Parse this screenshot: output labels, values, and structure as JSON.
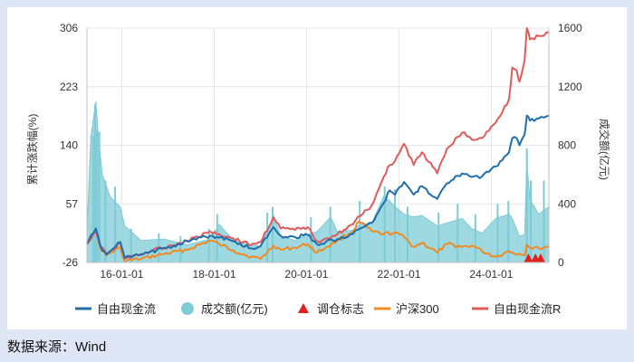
{
  "source_note": "数据来源：Wind",
  "colors": {
    "free_cash_flow": "#1f6fad",
    "volume": "#7ecbd6",
    "rebalance": "#e11f1f",
    "hs300": "#f08a24",
    "free_cash_flow_r": "#e05a5a",
    "grid": "#e6e6e6"
  },
  "chart_data": {
    "type": "line",
    "title": "",
    "xlabel": "",
    "ylabel": "累计涨跌幅(%)",
    "y2label": "成交额(亿元)",
    "ylim": [
      -26,
      306
    ],
    "y2lim": [
      0,
      1600
    ],
    "y_ticks": [
      "306",
      "223",
      "140",
      "57",
      "-26"
    ],
    "y2_ticks": [
      "1600",
      "1200",
      "800",
      "400",
      "0"
    ],
    "x_range": [
      "2015-04-01",
      "2025-03-31"
    ],
    "x_ticks": [
      {
        "date": "2016-01-01",
        "label": "16-01-01"
      },
      {
        "date": "2018-01-01",
        "label": "18-01-01"
      },
      {
        "date": "2020-01-01",
        "label": "20-01-01"
      },
      {
        "date": "2022-01-01",
        "label": "22-01-01"
      },
      {
        "date": "2024-01-01",
        "label": "24-01-01"
      }
    ],
    "legend": [
      {
        "key": "free_cash_flow",
        "label": "自由现金流",
        "shape": "line"
      },
      {
        "key": "volume",
        "label": "成交额(亿元)",
        "shape": "dot"
      },
      {
        "key": "rebalance",
        "label": "调仓标志",
        "shape": "triangle"
      },
      {
        "key": "hs300",
        "label": "沪深300",
        "shape": "line"
      },
      {
        "key": "free_cash_flow_r",
        "label": "自由现金流R",
        "shape": "line"
      }
    ],
    "series": [
      {
        "key": "free_cash_flow_r",
        "name": "自由现金流R",
        "axis": "left",
        "kind": "line",
        "points": [
          [
            "2015-04-01",
            0
          ],
          [
            "2015-06-10",
            18
          ],
          [
            "2015-07-15",
            -3
          ],
          [
            "2015-09-01",
            -14
          ],
          [
            "2015-12-20",
            2
          ],
          [
            "2016-01-25",
            -20
          ],
          [
            "2016-06-01",
            -14
          ],
          [
            "2016-12-01",
            -5
          ],
          [
            "2017-06-01",
            5
          ],
          [
            "2017-12-01",
            18
          ],
          [
            "2018-02-10",
            14
          ],
          [
            "2018-06-01",
            8
          ],
          [
            "2018-10-20",
            -1
          ],
          [
            "2019-01-03",
            3
          ],
          [
            "2019-04-15",
            38
          ],
          [
            "2019-06-10",
            22
          ],
          [
            "2019-10-01",
            20
          ],
          [
            "2020-01-10",
            24
          ],
          [
            "2020-03-23",
            4
          ],
          [
            "2020-06-01",
            8
          ],
          [
            "2020-09-01",
            14
          ],
          [
            "2021-01-01",
            28
          ],
          [
            "2021-03-01",
            40
          ],
          [
            "2021-06-01",
            55
          ],
          [
            "2021-09-01",
            95
          ],
          [
            "2021-10-20",
            112
          ],
          [
            "2021-12-01",
            118
          ],
          [
            "2022-02-10",
            142
          ],
          [
            "2022-04-27",
            112
          ],
          [
            "2022-07-01",
            130
          ],
          [
            "2022-10-31",
            100
          ],
          [
            "2023-01-15",
            135
          ],
          [
            "2023-05-15",
            158
          ],
          [
            "2023-08-01",
            148
          ],
          [
            "2023-10-20",
            150
          ],
          [
            "2024-02-05",
            172
          ],
          [
            "2024-05-20",
            205
          ],
          [
            "2024-06-15",
            250
          ],
          [
            "2024-07-20",
            246
          ],
          [
            "2024-08-10",
            230
          ],
          [
            "2024-09-20",
            260
          ],
          [
            "2024-10-08",
            306
          ],
          [
            "2024-11-01",
            290
          ],
          [
            "2025-01-10",
            295
          ],
          [
            "2025-03-31",
            300
          ]
        ]
      },
      {
        "key": "free_cash_flow",
        "name": "自由现金流",
        "axis": "left",
        "kind": "line",
        "points": [
          [
            "2015-04-01",
            0
          ],
          [
            "2015-06-10",
            22
          ],
          [
            "2015-07-15",
            -2
          ],
          [
            "2015-09-01",
            -15
          ],
          [
            "2015-12-20",
            3
          ],
          [
            "2016-01-25",
            -20
          ],
          [
            "2016-06-01",
            -15
          ],
          [
            "2016-12-01",
            -6
          ],
          [
            "2017-06-01",
            4
          ],
          [
            "2017-12-01",
            12
          ],
          [
            "2018-02-10",
            9
          ],
          [
            "2018-06-01",
            4
          ],
          [
            "2018-10-20",
            -6
          ],
          [
            "2019-01-03",
            -3
          ],
          [
            "2019-04-15",
            24
          ],
          [
            "2019-06-10",
            12
          ],
          [
            "2019-10-01",
            10
          ],
          [
            "2020-01-10",
            13
          ],
          [
            "2020-03-23",
            0
          ],
          [
            "2020-06-01",
            3
          ],
          [
            "2020-09-01",
            7
          ],
          [
            "2021-01-01",
            14
          ],
          [
            "2021-03-01",
            22
          ],
          [
            "2021-06-01",
            30
          ],
          [
            "2021-09-01",
            58
          ],
          [
            "2021-10-20",
            76
          ],
          [
            "2021-12-01",
            70
          ],
          [
            "2022-02-10",
            88
          ],
          [
            "2022-04-27",
            70
          ],
          [
            "2022-07-01",
            82
          ],
          [
            "2022-10-31",
            64
          ],
          [
            "2023-01-15",
            86
          ],
          [
            "2023-05-15",
            100
          ],
          [
            "2023-08-01",
            95
          ],
          [
            "2023-10-20",
            96
          ],
          [
            "2024-02-05",
            110
          ],
          [
            "2024-05-20",
            130
          ],
          [
            "2024-06-15",
            150
          ],
          [
            "2024-07-20",
            150
          ],
          [
            "2024-08-10",
            140
          ],
          [
            "2024-09-20",
            155
          ],
          [
            "2024-10-08",
            182
          ],
          [
            "2024-11-01",
            175
          ],
          [
            "2025-01-10",
            178
          ],
          [
            "2025-03-31",
            182
          ]
        ]
      },
      {
        "key": "hs300",
        "name": "沪深300",
        "axis": "left",
        "kind": "line",
        "points": [
          [
            "2015-04-01",
            0
          ],
          [
            "2015-06-10",
            20
          ],
          [
            "2015-07-15",
            -5
          ],
          [
            "2015-09-01",
            -16
          ],
          [
            "2015-12-20",
            -5
          ],
          [
            "2016-01-25",
            -24
          ],
          [
            "2016-06-01",
            -21
          ],
          [
            "2016-12-01",
            -14
          ],
          [
            "2017-06-01",
            -8
          ],
          [
            "2017-12-01",
            5
          ],
          [
            "2018-02-10",
            0
          ],
          [
            "2018-06-01",
            -9
          ],
          [
            "2018-10-20",
            -18
          ],
          [
            "2019-01-03",
            -21
          ],
          [
            "2019-04-15",
            -2
          ],
          [
            "2019-06-10",
            -8
          ],
          [
            "2019-10-01",
            -5
          ],
          [
            "2020-01-10",
            0
          ],
          [
            "2020-03-23",
            -12
          ],
          [
            "2020-06-01",
            -5
          ],
          [
            "2020-09-01",
            5
          ],
          [
            "2021-01-01",
            18
          ],
          [
            "2021-02-18",
            32
          ],
          [
            "2021-06-01",
            18
          ],
          [
            "2021-09-01",
            14
          ],
          [
            "2021-12-01",
            16
          ],
          [
            "2022-02-10",
            10
          ],
          [
            "2022-04-27",
            -4
          ],
          [
            "2022-07-01",
            2
          ],
          [
            "2022-10-31",
            -12
          ],
          [
            "2023-01-15",
            0
          ],
          [
            "2023-05-15",
            -4
          ],
          [
            "2023-08-01",
            -2
          ],
          [
            "2023-10-20",
            -10
          ],
          [
            "2024-02-05",
            -18
          ],
          [
            "2024-05-20",
            -10
          ],
          [
            "2024-06-15",
            -12
          ],
          [
            "2024-08-10",
            -14
          ],
          [
            "2024-09-20",
            -16
          ],
          [
            "2024-10-08",
            -1
          ],
          [
            "2024-11-01",
            -5
          ],
          [
            "2025-01-10",
            -6
          ],
          [
            "2025-03-31",
            -3
          ]
        ]
      },
      {
        "key": "volume",
        "name": "成交额(亿元)",
        "axis": "right",
        "kind": "area",
        "points": [
          [
            "2015-04-01",
            200
          ],
          [
            "2015-05-01",
            850
          ],
          [
            "2015-06-10",
            1100
          ],
          [
            "2015-07-01",
            850
          ],
          [
            "2015-08-01",
            600
          ],
          [
            "2015-10-01",
            450
          ],
          [
            "2015-12-20",
            380
          ],
          [
            "2016-01-25",
            250
          ],
          [
            "2016-06-01",
            150
          ],
          [
            "2016-12-01",
            160
          ],
          [
            "2017-06-01",
            120
          ],
          [
            "2017-12-01",
            160
          ],
          [
            "2018-02-10",
            260
          ],
          [
            "2018-06-01",
            150
          ],
          [
            "2018-10-20",
            120
          ],
          [
            "2019-01-03",
            110
          ],
          [
            "2019-04-15",
            320
          ],
          [
            "2019-06-10",
            180
          ],
          [
            "2019-10-01",
            150
          ],
          [
            "2020-01-10",
            190
          ],
          [
            "2020-03-23",
            210
          ],
          [
            "2020-07-10",
            310
          ],
          [
            "2020-09-01",
            210
          ],
          [
            "2021-01-01",
            220
          ],
          [
            "2021-03-01",
            260
          ],
          [
            "2021-06-01",
            270
          ],
          [
            "2021-09-01",
            450
          ],
          [
            "2021-10-20",
            420
          ],
          [
            "2021-12-01",
            380
          ],
          [
            "2022-02-10",
            330
          ],
          [
            "2022-04-27",
            310
          ],
          [
            "2022-07-01",
            320
          ],
          [
            "2022-10-31",
            250
          ],
          [
            "2023-01-15",
            270
          ],
          [
            "2023-05-15",
            300
          ],
          [
            "2023-08-01",
            230
          ],
          [
            "2023-10-20",
            200
          ],
          [
            "2024-02-05",
            300
          ],
          [
            "2024-05-20",
            330
          ],
          [
            "2024-06-15",
            300
          ],
          [
            "2024-08-10",
            180
          ],
          [
            "2024-09-20",
            190
          ],
          [
            "2024-10-08",
            680
          ],
          [
            "2024-11-01",
            430
          ],
          [
            "2025-01-10",
            330
          ],
          [
            "2025-03-31",
            380
          ]
        ],
        "peaks": [
          [
            "2015-05-20",
            860
          ],
          [
            "2015-06-05",
            1080
          ],
          [
            "2015-06-20",
            900
          ],
          [
            "2015-07-08",
            890
          ],
          [
            "2015-08-25",
            560
          ],
          [
            "2015-11-10",
            520
          ],
          [
            "2016-03-15",
            230
          ],
          [
            "2016-10-20",
            200
          ],
          [
            "2017-04-10",
            180
          ],
          [
            "2017-11-20",
            230
          ],
          [
            "2018-01-25",
            330
          ],
          [
            "2019-02-25",
            340
          ],
          [
            "2019-04-08",
            380
          ],
          [
            "2020-02-05",
            310
          ],
          [
            "2020-07-07",
            380
          ],
          [
            "2021-02-25",
            420
          ],
          [
            "2021-09-10",
            520
          ],
          [
            "2021-11-30",
            500
          ],
          [
            "2022-03-10",
            380
          ],
          [
            "2022-11-10",
            340
          ],
          [
            "2023-04-10",
            400
          ],
          [
            "2023-08-28",
            330
          ],
          [
            "2024-02-20",
            400
          ],
          [
            "2024-05-15",
            420
          ],
          [
            "2024-10-08",
            780
          ],
          [
            "2024-11-08",
            560
          ],
          [
            "2025-02-20",
            560
          ]
        ]
      }
    ],
    "rebalance_markers": [
      {
        "date": "2024-10-20",
        "value": -26
      },
      {
        "date": "2024-12-15",
        "value": -26
      },
      {
        "date": "2025-01-25",
        "value": -26
      }
    ]
  }
}
